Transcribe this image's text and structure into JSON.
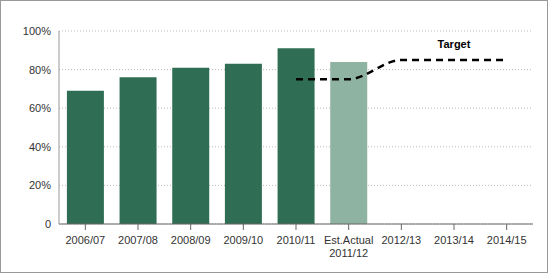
{
  "chart_data": {
    "type": "bar",
    "categories": [
      "2006/07",
      "2007/08",
      "2008/09",
      "2009/10",
      "2010/11",
      "Est.Actual 2011/12",
      "2012/13",
      "2013/14",
      "2014/15"
    ],
    "series": [
      {
        "type": "bar",
        "values": [
          69,
          76,
          81,
          83,
          91,
          84,
          null,
          null,
          null
        ],
        "colors": [
          "#2f6e55",
          "#2f6e55",
          "#2f6e55",
          "#2f6e55",
          "#2f6e55",
          "#8fb3a2",
          "#2f6e55",
          "#2f6e55",
          "#2f6e55"
        ]
      },
      {
        "name": "Target",
        "type": "line",
        "line_style": "dashed",
        "color": "#000000",
        "values": [
          null,
          null,
          null,
          null,
          75,
          75,
          85,
          85,
          85
        ]
      }
    ],
    "ylim": [
      0,
      100
    ],
    "yticks": [
      0,
      {
        "value": 20,
        "label": "20%"
      },
      {
        "value": 40,
        "label": "40%"
      },
      {
        "value": 60,
        "label": "60%"
      },
      {
        "value": 80,
        "label": "80%"
      },
      {
        "value": 100,
        "label": "100%"
      }
    ],
    "grid": true
  }
}
